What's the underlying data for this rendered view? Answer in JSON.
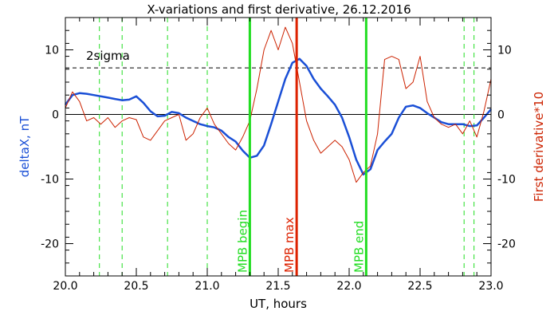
{
  "chart_data": {
    "type": "line",
    "title": "X-variations and first derivative, 26.12.2016",
    "xlabel": "UT, hours",
    "ylabel_left": "deltaX, nT",
    "ylabel_right": "First derivative*10",
    "xlim": [
      20.0,
      23.0
    ],
    "ylim": [
      -25,
      15
    ],
    "x_ticks": [
      "20.0",
      "20.5",
      "21.0",
      "21.5",
      "22.0",
      "22.5",
      "23.0"
    ],
    "y_ticks_left": [
      "10",
      "0",
      "-10",
      "-20"
    ],
    "y_ticks_right": [
      "10",
      "0",
      "-10",
      "-20"
    ],
    "sigma_level": 7.2,
    "sigma_label": "2sigma",
    "dashed_green_lines": [
      20.24,
      20.4,
      20.72,
      21.0,
      22.81,
      22.88
    ],
    "markers": [
      {
        "label": "MPB begin",
        "x": 21.3,
        "color": "#22dd22"
      },
      {
        "label": "MPB max",
        "x": 21.63,
        "color": "#dd2200"
      },
      {
        "label": "MPB end",
        "x": 22.12,
        "color": "#22dd22"
      }
    ],
    "series": [
      {
        "name": "deltaX, nT",
        "color": "#1a4fd6",
        "x": [
          20.0,
          20.05,
          20.1,
          20.15,
          20.2,
          20.25,
          20.3,
          20.35,
          20.4,
          20.45,
          20.5,
          20.55,
          20.6,
          20.65,
          20.7,
          20.75,
          20.8,
          20.85,
          20.9,
          20.95,
          21.0,
          21.05,
          21.1,
          21.15,
          21.2,
          21.25,
          21.3,
          21.35,
          21.4,
          21.45,
          21.5,
          21.55,
          21.6,
          21.65,
          21.7,
          21.75,
          21.8,
          21.85,
          21.9,
          21.95,
          22.0,
          22.05,
          22.1,
          22.15,
          22.2,
          22.25,
          22.3,
          22.35,
          22.4,
          22.45,
          22.5,
          22.55,
          22.6,
          22.65,
          22.7,
          22.75,
          22.8,
          22.85,
          22.9,
          22.95,
          23.0
        ],
        "values": [
          1.5,
          3.0,
          3.3,
          3.2,
          3.0,
          2.8,
          2.6,
          2.4,
          2.2,
          2.3,
          2.8,
          1.8,
          0.5,
          -0.3,
          -0.2,
          0.4,
          0.2,
          -0.5,
          -1.0,
          -1.5,
          -1.8,
          -2.0,
          -2.5,
          -3.5,
          -4.2,
          -5.6,
          -6.7,
          -6.4,
          -4.8,
          -1.5,
          2.0,
          5.5,
          8.0,
          8.6,
          7.5,
          5.5,
          4.0,
          2.8,
          1.5,
          -0.5,
          -3.5,
          -7.0,
          -9.3,
          -8.5,
          -5.5,
          -4.2,
          -3.0,
          -0.5,
          1.2,
          1.4,
          1.0,
          0.2,
          -0.5,
          -1.2,
          -1.5,
          -1.5,
          -1.5,
          -1.8,
          -1.7,
          -0.5,
          0.8
        ]
      },
      {
        "name": "First derivative*10",
        "color": "#cc2200",
        "x": [
          20.0,
          20.05,
          20.1,
          20.15,
          20.2,
          20.25,
          20.3,
          20.35,
          20.4,
          20.45,
          20.5,
          20.55,
          20.6,
          20.65,
          20.7,
          20.75,
          20.8,
          20.85,
          20.9,
          20.95,
          21.0,
          21.05,
          21.1,
          21.15,
          21.2,
          21.25,
          21.3,
          21.35,
          21.4,
          21.45,
          21.5,
          21.55,
          21.6,
          21.65,
          21.7,
          21.75,
          21.8,
          21.85,
          21.9,
          21.95,
          22.0,
          22.05,
          22.1,
          22.15,
          22.2,
          22.25,
          22.3,
          22.35,
          22.4,
          22.45,
          22.5,
          22.55,
          22.6,
          22.65,
          22.7,
          22.75,
          22.8,
          22.85,
          22.9,
          22.95,
          23.0
        ],
        "values": [
          1.0,
          3.5,
          2.0,
          -1.0,
          -0.5,
          -1.5,
          -0.5,
          -2.0,
          -1.0,
          -0.5,
          -0.8,
          -3.5,
          -4.0,
          -2.5,
          -1.0,
          -0.5,
          0.0,
          -4.0,
          -3.0,
          -0.5,
          1.0,
          -1.5,
          -3.0,
          -4.5,
          -5.5,
          -3.5,
          -1.0,
          4.0,
          10.0,
          13.0,
          10.0,
          13.5,
          11.0,
          5.0,
          -1.0,
          -4.0,
          -6.0,
          -5.0,
          -4.0,
          -5.0,
          -7.0,
          -10.5,
          -9.0,
          -8.0,
          -3.0,
          8.5,
          9.0,
          8.5,
          4.0,
          5.0,
          9.0,
          2.0,
          -0.5,
          -1.5,
          -2.0,
          -1.5,
          -3.0,
          -1.0,
          -3.5,
          0.5,
          5.5
        ]
      }
    ]
  }
}
